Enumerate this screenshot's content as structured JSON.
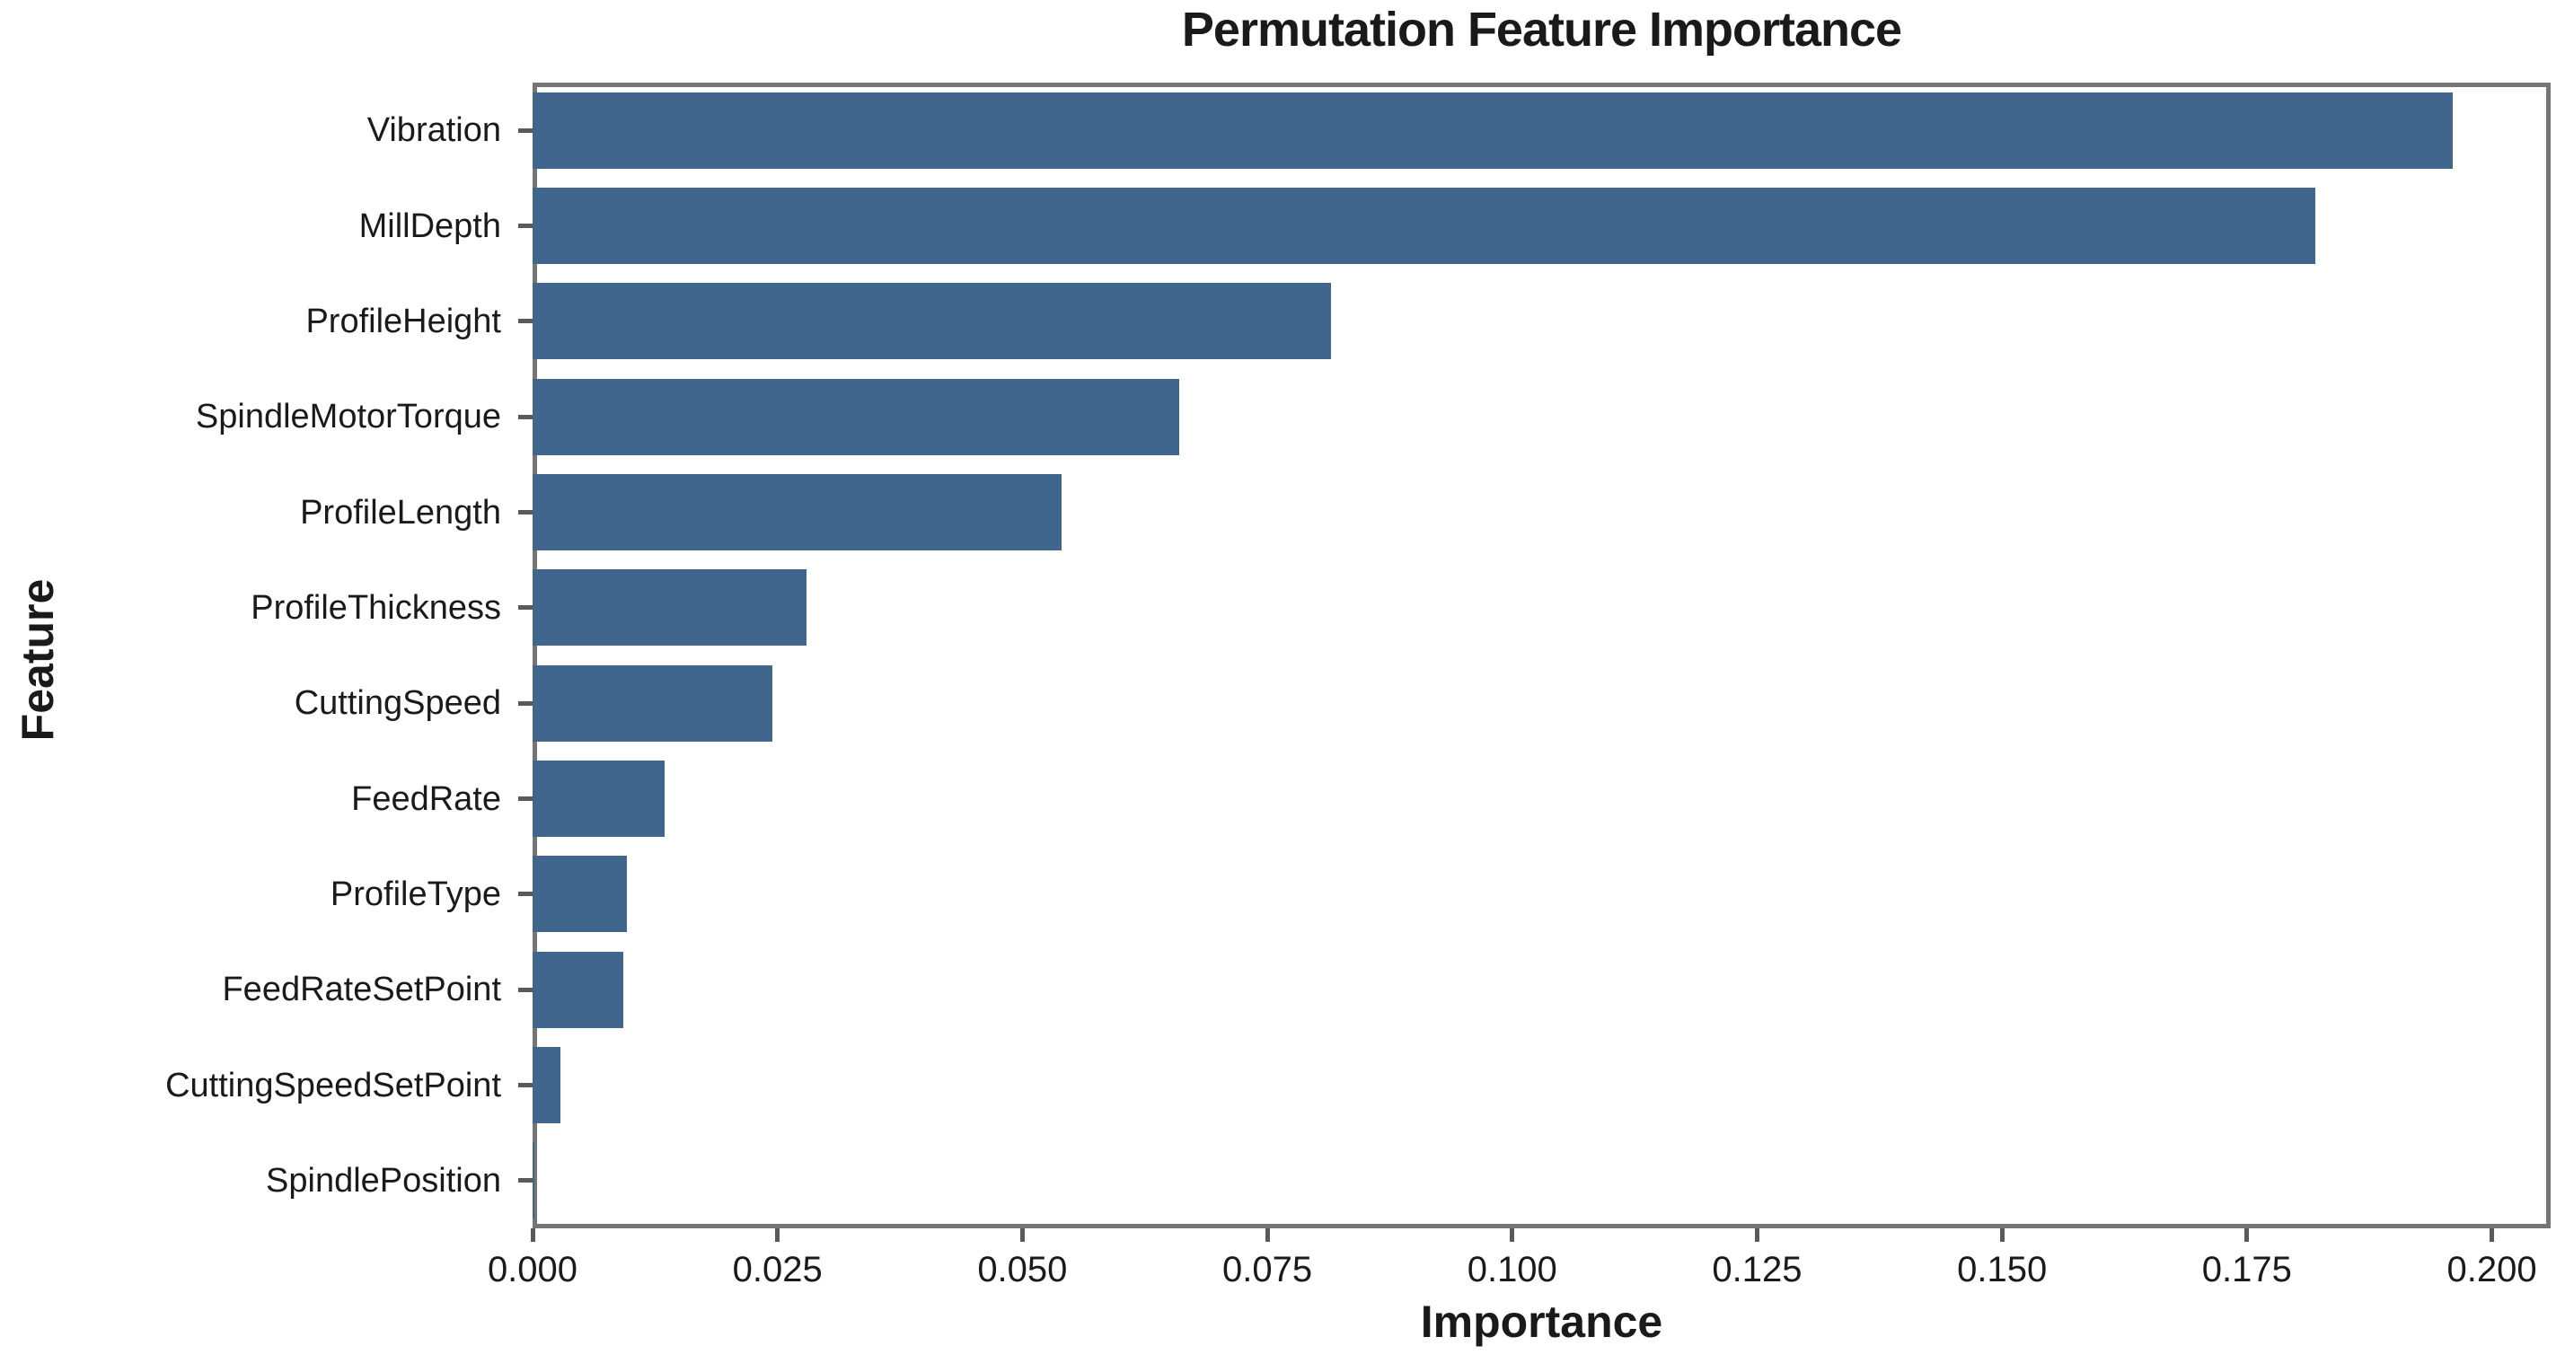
{
  "chart_data": {
    "type": "bar",
    "orientation": "horizontal",
    "title": "Permutation Feature Importance",
    "xlabel": "Importance",
    "ylabel": "Feature",
    "categories": [
      "Vibration",
      "MillDepth",
      "ProfileHeight",
      "SpindleMotorTorque",
      "ProfileLength",
      "ProfileThickness",
      "CuttingSpeed",
      "FeedRate",
      "ProfileType",
      "FeedRateSetPoint",
      "CuttingSpeedSetPoint",
      "SpindlePosition"
    ],
    "values": [
      0.196,
      0.182,
      0.0815,
      0.066,
      0.054,
      0.028,
      0.0245,
      0.0135,
      0.0096,
      0.0093,
      0.0028,
      0.0002
    ],
    "xticks": [
      "0.000",
      "0.025",
      "0.050",
      "0.075",
      "0.100",
      "0.125",
      "0.150",
      "0.175",
      "0.200"
    ],
    "xlim": [
      0,
      0.206
    ],
    "grid": false,
    "legend": "none",
    "bar_color": "#41668E",
    "axis_color": "#757575",
    "text_color": "#1a1a1a"
  }
}
